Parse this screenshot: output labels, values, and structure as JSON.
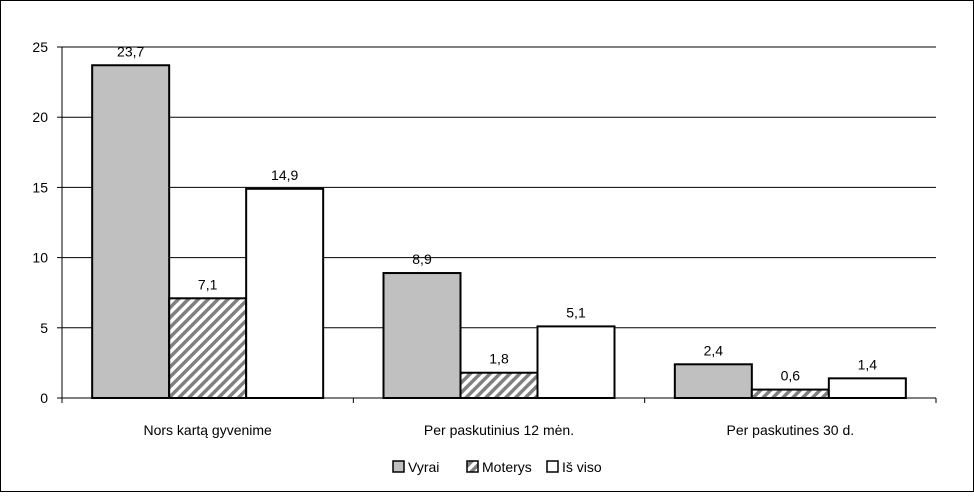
{
  "chart_data": {
    "type": "bar",
    "title": "",
    "xlabel": "",
    "ylabel": "",
    "categories": [
      "Nors kartą gyvenime",
      "Per paskutinius 12 mėn.",
      "Per paskutines 30 d."
    ],
    "series": [
      {
        "name": "Vyrai",
        "values": [
          23.7,
          8.9,
          2.4
        ],
        "labels": [
          "23,7",
          "8,9",
          "2,4"
        ],
        "color": "#c0c0c0",
        "pattern": "solid"
      },
      {
        "name": "Moterys",
        "values": [
          7.1,
          1.8,
          0.6
        ],
        "labels": [
          "7,1",
          "1,8",
          "0,6"
        ],
        "color": "#808080",
        "pattern": "diagonal-hatch"
      },
      {
        "name": "Iš viso",
        "values": [
          14.9,
          5.1,
          1.4
        ],
        "labels": [
          "14,9",
          "5,1",
          "1,4"
        ],
        "color": "#ffffff",
        "pattern": "solid"
      }
    ],
    "ylim": [
      0,
      25
    ],
    "yticks": [
      0,
      5,
      10,
      15,
      20,
      25
    ],
    "grid": true,
    "legend": "bottom"
  }
}
